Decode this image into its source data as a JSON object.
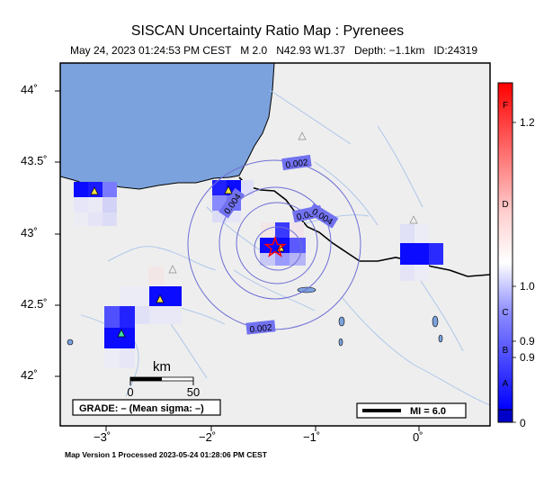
{
  "title": "SISCAN Uncertainty Ratio Map : Pyrenees",
  "subtitle": "May 24, 2023 01:24:53 PM CEST   M 2.0   N42.93 W1.37   Depth: −1.1km   ID:24319",
  "footer": "Map Version 1 Processed 2023-05-24 01:28:06 PM CEST",
  "lat_ticks": [
    "44˚",
    "43.5˚",
    "43˚",
    "42.5˚",
    "42˚"
  ],
  "lon_ticks": [
    "−3˚",
    "−2˚",
    "−1˚",
    "0˚"
  ],
  "contours": [
    "0.002",
    "0.004",
    "0.006",
    "0.004",
    "0.002"
  ],
  "scale_bar": {
    "unit": "km",
    "start": "0",
    "end": "50"
  },
  "grade_box": "GRADE: – (Mean sigma: –)",
  "mi_label": "MI = 6.0",
  "colorbar": {
    "letters": [
      "F",
      "D",
      "C",
      "B",
      "A"
    ],
    "values": [
      "1.2",
      "1.0",
      "0.9",
      "0.9",
      "0"
    ]
  },
  "colors": {
    "sea": "#7ba2dc",
    "land": "#eeeeee",
    "strong_blue": "#0b0bff",
    "epicenter": "#ff0000"
  },
  "icons": [
    "epicenter-star-icon",
    "station-triangle-icon"
  ]
}
